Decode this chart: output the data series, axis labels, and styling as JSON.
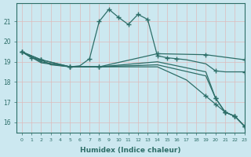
{
  "xlabel": "Humidex (Indice chaleur)",
  "bg_color": "#cce8f0",
  "line_color": "#2d6e68",
  "grid_color": "#dddddd",
  "xlim": [
    -0.5,
    23
  ],
  "ylim": [
    15.5,
    21.9
  ],
  "yticks": [
    16,
    17,
    18,
    19,
    20,
    21
  ],
  "xticks": [
    0,
    1,
    2,
    3,
    4,
    5,
    6,
    7,
    8,
    9,
    10,
    11,
    12,
    13,
    14,
    15,
    16,
    17,
    18,
    19,
    20,
    21,
    22,
    23
  ],
  "lines": [
    {
      "x": [
        0,
        1,
        2,
        3,
        4,
        5,
        6,
        7,
        8,
        9,
        10,
        11,
        12,
        13,
        14,
        15,
        16,
        17,
        18,
        19,
        20,
        21,
        22,
        23
      ],
      "y": [
        19.5,
        19.2,
        19.1,
        18.85,
        18.8,
        18.75,
        18.8,
        19.15,
        21.0,
        21.6,
        21.2,
        20.85,
        21.35,
        21.1,
        19.3,
        19.2,
        19.15,
        19.1,
        19.0,
        18.9,
        18.55,
        18.5,
        18.5,
        18.5
      ],
      "markx": [
        0,
        1,
        2,
        5,
        7,
        8,
        9,
        10,
        11,
        12,
        13,
        14,
        15,
        16,
        20,
        23
      ],
      "marky": [
        19.5,
        19.2,
        19.1,
        18.75,
        19.15,
        21.0,
        21.6,
        21.2,
        20.85,
        21.35,
        21.1,
        19.3,
        19.2,
        19.15,
        18.55,
        18.5
      ]
    },
    {
      "x": [
        0,
        2,
        5,
        8,
        14,
        19,
        23
      ],
      "y": [
        19.5,
        19.1,
        18.75,
        18.75,
        19.4,
        19.35,
        19.1
      ],
      "markx": [
        0,
        2,
        5,
        8,
        14,
        19,
        23
      ],
      "marky": [
        19.5,
        19.1,
        18.75,
        18.75,
        19.4,
        19.35,
        19.1
      ]
    },
    {
      "x": [
        0,
        2,
        5,
        8,
        14,
        19,
        20,
        21,
        22,
        23
      ],
      "y": [
        19.5,
        19.1,
        18.75,
        18.75,
        19.0,
        18.5,
        17.2,
        16.5,
        16.3,
        15.8
      ],
      "markx": [
        0,
        2,
        5,
        8,
        20,
        21,
        22,
        23
      ],
      "marky": [
        19.5,
        19.1,
        18.75,
        18.75,
        17.2,
        16.5,
        16.3,
        15.8
      ]
    },
    {
      "x": [
        0,
        2,
        5,
        8,
        14,
        19,
        20,
        21,
        22,
        23
      ],
      "y": [
        19.5,
        19.0,
        18.75,
        18.75,
        18.85,
        18.3,
        17.2,
        16.5,
        16.3,
        15.8
      ],
      "markx": [
        20,
        21,
        22,
        23
      ],
      "marky": [
        17.2,
        16.5,
        16.3,
        15.8
      ]
    },
    {
      "x": [
        0,
        2,
        5,
        8,
        14,
        17,
        19,
        20,
        21,
        22,
        23
      ],
      "y": [
        19.5,
        18.95,
        18.75,
        18.75,
        18.75,
        18.1,
        17.3,
        16.9,
        16.5,
        16.3,
        15.8
      ],
      "markx": [
        19,
        20,
        21,
        22,
        23
      ],
      "marky": [
        17.3,
        16.9,
        16.5,
        16.3,
        15.8
      ]
    }
  ]
}
